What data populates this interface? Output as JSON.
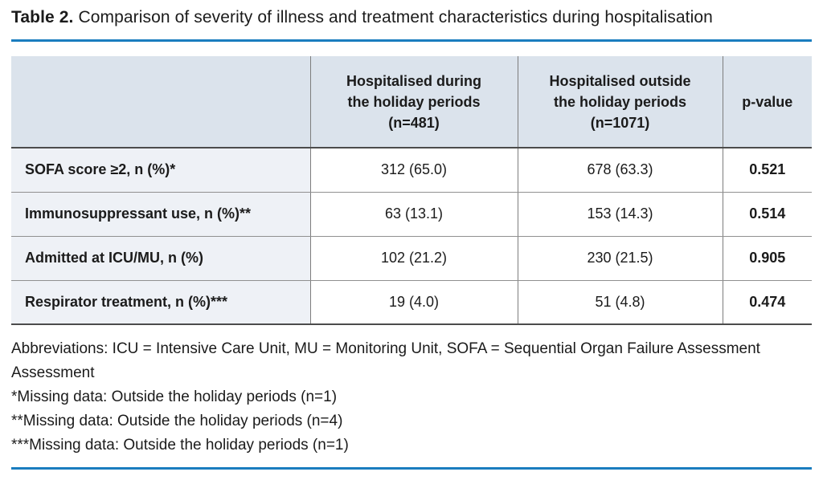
{
  "caption": {
    "label": "Table 2.",
    "text": "Comparison of severity of illness and treatment characteristics during hospitalisation"
  },
  "colors": {
    "accent_rule": "#1a7dbf",
    "header_bg": "#dbe3ec",
    "row_label_bg": "#eef1f6",
    "border_dark": "#4c4c4c",
    "border_light": "#909090",
    "text": "#1b1b1b"
  },
  "table": {
    "header": {
      "empty": "",
      "during": [
        "Hospitalised during",
        "the holiday periods",
        "(n=481)"
      ],
      "outside": [
        "Hospitalised outside",
        "the holiday periods",
        "(n=1071)"
      ],
      "pvalue": "p-value"
    },
    "rows": [
      {
        "label": "SOFA score ≥2, n (%)*",
        "during": "312 (65.0)",
        "outside": "678 (63.3)",
        "p": "0.521"
      },
      {
        "label": "Immunosuppressant use, n (%)**",
        "during": "63 (13.1)",
        "outside": "153 (14.3)",
        "p": "0.514"
      },
      {
        "label": "Admitted at ICU/MU, n (%)",
        "during": "102 (21.2)",
        "outside": "230 (21.5)",
        "p": "0.905"
      },
      {
        "label": "Respirator treatment, n (%)***",
        "during": "19 (4.0)",
        "outside": "51 (4.8)",
        "p": "0.474"
      }
    ]
  },
  "footnotes": [
    "Abbreviations: ICU = Intensive Care Unit, MU = Monitoring Unit, SOFA = Sequential Organ Failure Assessment",
    "Assessment",
    "*Missing data: Outside the holiday periods (n=1)",
    "**Missing data: Outside the holiday periods (n=4)",
    "***Missing data: Outside the holiday periods (n=1)"
  ]
}
